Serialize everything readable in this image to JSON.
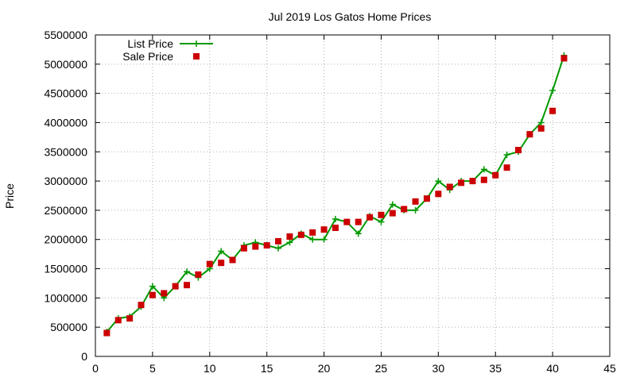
{
  "chart_data": {
    "type": "line",
    "title": "Jul 2019 Los Gatos Home Prices",
    "xlabel": "",
    "ylabel": "Price",
    "xlim": [
      0,
      45
    ],
    "ylim": [
      0,
      5500000
    ],
    "xticks": [
      "0",
      "5",
      "10",
      "15",
      "20",
      "25",
      "30",
      "35",
      "40",
      "45"
    ],
    "yticks": [
      "0",
      "500000",
      "1000000",
      "1500000",
      "2000000",
      "2500000",
      "3000000",
      "3500000",
      "4000000",
      "4500000",
      "5000000",
      "5500000"
    ],
    "grid": "dashed",
    "legend_position": "top-left",
    "x": [
      1,
      2,
      3,
      4,
      5,
      6,
      7,
      8,
      9,
      10,
      11,
      12,
      13,
      14,
      15,
      16,
      17,
      18,
      19,
      20,
      21,
      22,
      23,
      24,
      25,
      26,
      27,
      28,
      29,
      30,
      31,
      32,
      33,
      34,
      35,
      36,
      37,
      38,
      39,
      40,
      41
    ],
    "series": [
      {
        "name": "List Price",
        "style": "line+cross",
        "color": "#009900",
        "values": [
          420000,
          650000,
          680000,
          850000,
          1200000,
          1000000,
          1200000,
          1450000,
          1350000,
          1500000,
          1800000,
          1650000,
          1900000,
          1950000,
          1900000,
          1850000,
          1950000,
          2100000,
          2000000,
          2000000,
          2350000,
          2300000,
          2100000,
          2400000,
          2300000,
          2600000,
          2500000,
          2500000,
          2700000,
          3000000,
          2850000,
          3000000,
          3000000,
          3200000,
          3100000,
          3450000,
          3500000,
          3800000,
          4000000,
          4550000,
          5150000
        ]
      },
      {
        "name": "Sale Price",
        "style": "square-markers",
        "color": "#cc0000",
        "values": [
          400000,
          620000,
          650000,
          880000,
          1050000,
          1080000,
          1200000,
          1220000,
          1400000,
          1580000,
          1600000,
          1650000,
          1850000,
          1880000,
          1900000,
          1970000,
          2050000,
          2080000,
          2120000,
          2170000,
          2200000,
          2300000,
          2300000,
          2380000,
          2420000,
          2450000,
          2520000,
          2650000,
          2700000,
          2780000,
          2900000,
          2970000,
          3000000,
          3020000,
          3100000,
          3230000,
          3530000,
          3800000,
          3900000,
          4200000,
          5100000
        ]
      }
    ]
  }
}
